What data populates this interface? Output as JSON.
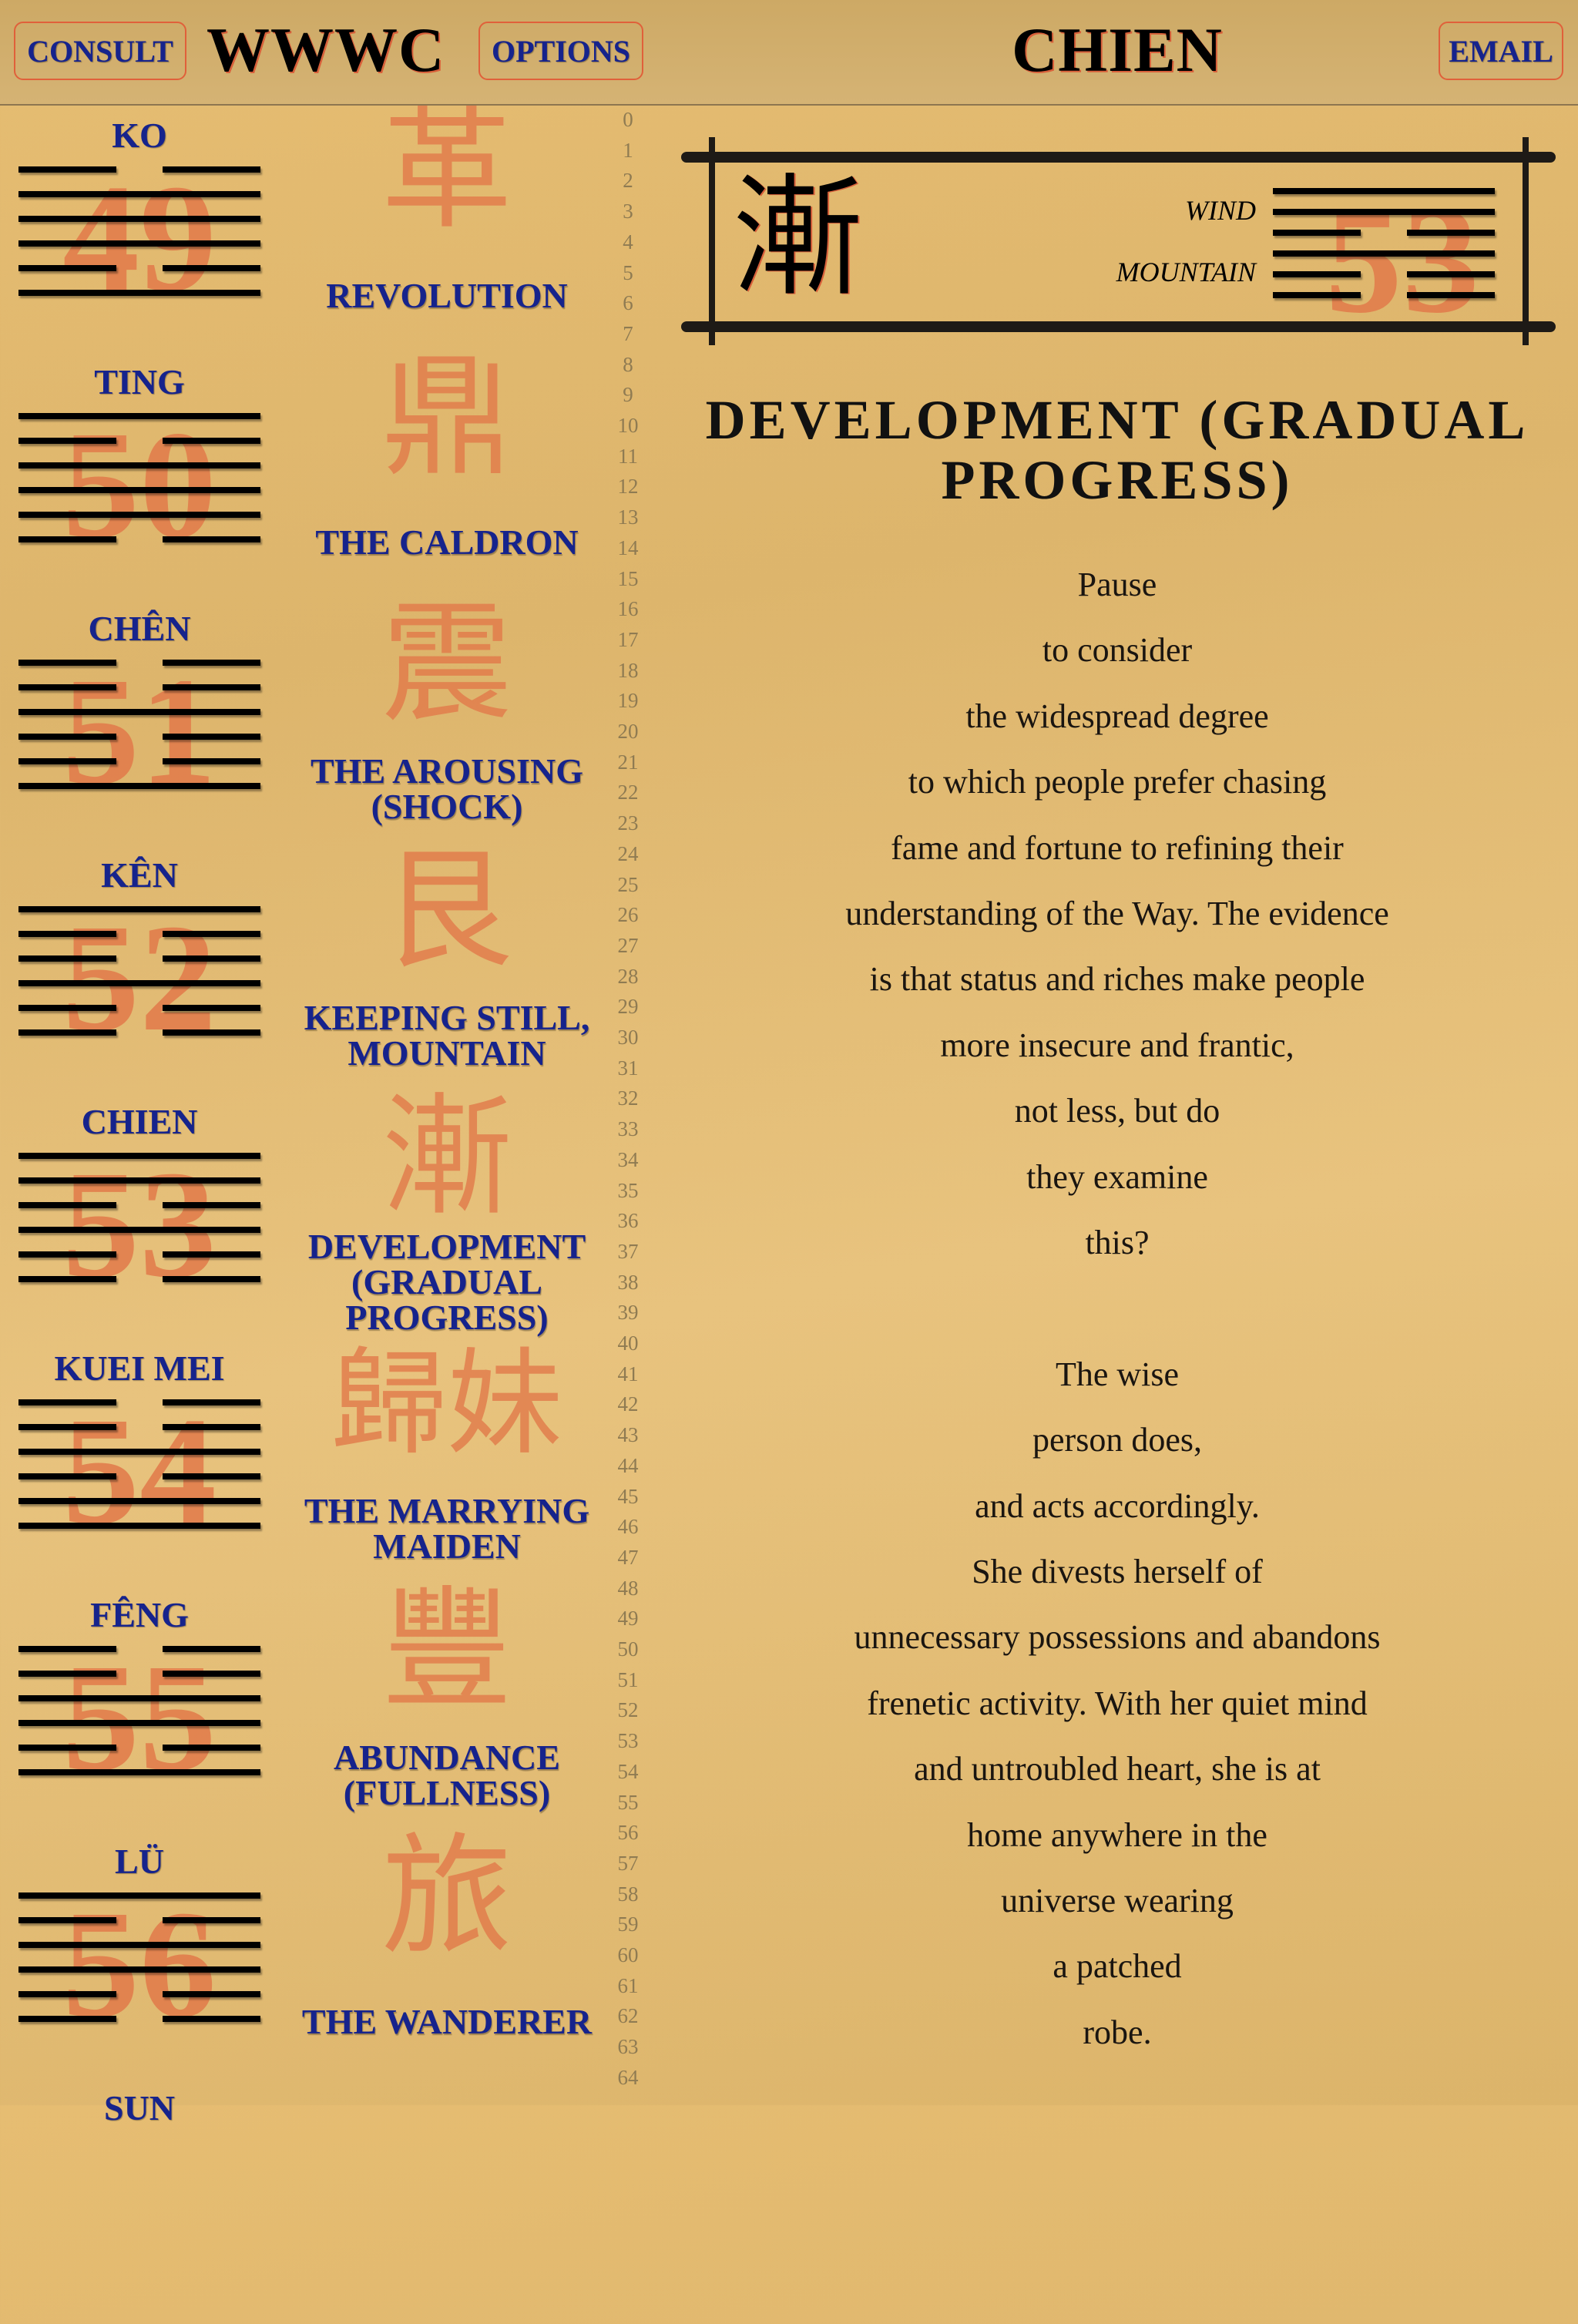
{
  "header": {
    "consult_label": "CONSULT",
    "app_title": "WWWC",
    "options_label": "OPTIONS",
    "current_title": "CHIEN",
    "email_label": "EMAIL"
  },
  "colors": {
    "button_text": "#16238c",
    "button_border": "#e0603a",
    "numeral": "#e27a4a"
  },
  "hexagram_list": [
    {
      "label": "KO",
      "number": "49",
      "char": "革",
      "name": "REVOLUTION",
      "lines": "011101"
    },
    {
      "label": "TING",
      "number": "50",
      "char": "鼎",
      "name": "THE CALDRON",
      "lines": "101110"
    },
    {
      "label": "CHÊN",
      "number": "51",
      "char": "震",
      "name": "THE AROUSING (SHOCK)",
      "lines": "001001"
    },
    {
      "label": "KÊN",
      "number": "52",
      "char": "艮",
      "name": "KEEPING STILL, MOUNTAIN",
      "lines": "100100"
    },
    {
      "label": "CHIEN",
      "number": "53",
      "char": "漸",
      "name": "DEVELOPMENT (GRADUAL PROGRESS)",
      "lines": "110100"
    },
    {
      "label": "KUEI MEI",
      "number": "54",
      "char": "歸妹",
      "name": "THE MARRYING MAIDEN",
      "lines": "001011"
    },
    {
      "label": "FÊNG",
      "number": "55",
      "char": "豐",
      "name": "ABUNDANCE (FULLNESS)",
      "lines": "001101"
    },
    {
      "label": "LÜ",
      "number": "56",
      "char": "旅",
      "name": "THE WANDERER",
      "lines": "101100"
    },
    {
      "label": "SUN",
      "number": "",
      "char": "",
      "name": "",
      "lines": ""
    }
  ],
  "index_numbers": [
    "0",
    "1",
    "2",
    "3",
    "4",
    "5",
    "6",
    "7",
    "8",
    "9",
    "10",
    "11",
    "12",
    "13",
    "14",
    "15",
    "16",
    "17",
    "18",
    "19",
    "20",
    "21",
    "22",
    "23",
    "24",
    "25",
    "26",
    "27",
    "28",
    "29",
    "30",
    "31",
    "32",
    "33",
    "34",
    "35",
    "36",
    "37",
    "38",
    "39",
    "40",
    "41",
    "42",
    "43",
    "44",
    "45",
    "46",
    "47",
    "48",
    "49",
    "50",
    "51",
    "52",
    "53",
    "54",
    "55",
    "56",
    "57",
    "58",
    "59",
    "60",
    "61",
    "62",
    "63",
    "64"
  ],
  "detail": {
    "char": "漸",
    "upper_trigram": "WIND",
    "lower_trigram": "MOUNTAIN",
    "number": "53",
    "lines": "110100",
    "title_line1": "DEVELOPMENT (GRADUAL",
    "title_line2": "PROGRESS)",
    "text": [
      "Pause",
      "to consider",
      "the widespread degree",
      "to which people prefer chasing",
      "fame and fortune to refining their",
      "understanding of the Way. The evidence",
      "is that status and riches make people",
      "more insecure and frantic,",
      "not less, but do",
      "they examine",
      "this?",
      "",
      "The wise",
      "person does,",
      "and acts accordingly.",
      "She divests herself of",
      "unnecessary possessions and abandons",
      "frenetic activity. With her quiet mind",
      "and untroubled heart, she is at",
      "home anywhere in the",
      "universe wearing",
      "a patched",
      "robe."
    ]
  }
}
